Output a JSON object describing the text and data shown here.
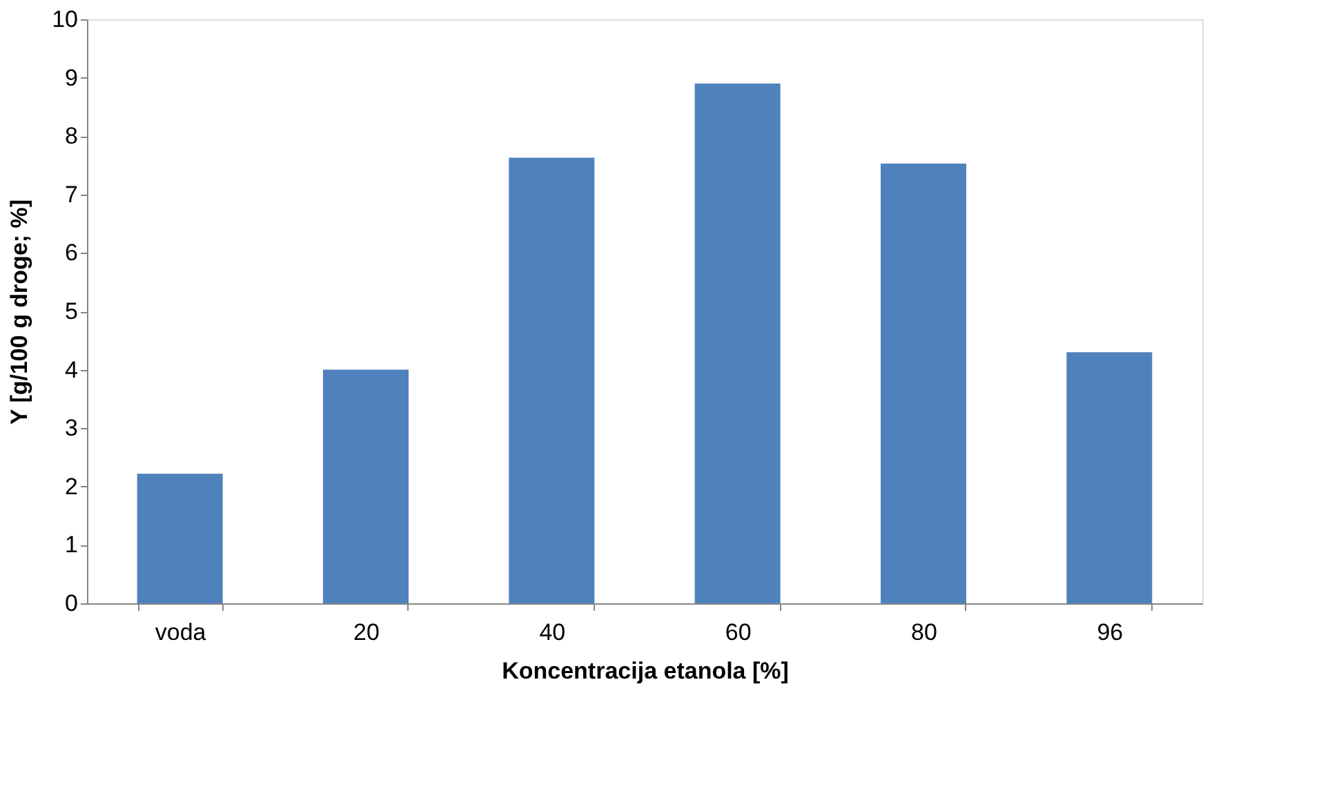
{
  "chart_data": {
    "type": "bar",
    "xlabel": "Koncentracija etanola [%]",
    "ylabel": "Y [g/100 g droge; %]",
    "categories": [
      "voda",
      "20",
      "40",
      "60",
      "80",
      "96"
    ],
    "values": [
      2.22,
      4.0,
      7.63,
      8.9,
      7.53,
      4.3
    ],
    "color": "#4f81bd",
    "ylim": [
      0,
      10
    ],
    "yticks": [
      0,
      1,
      2,
      3,
      4,
      5,
      6,
      7,
      8,
      9,
      10
    ],
    "grid": false
  }
}
